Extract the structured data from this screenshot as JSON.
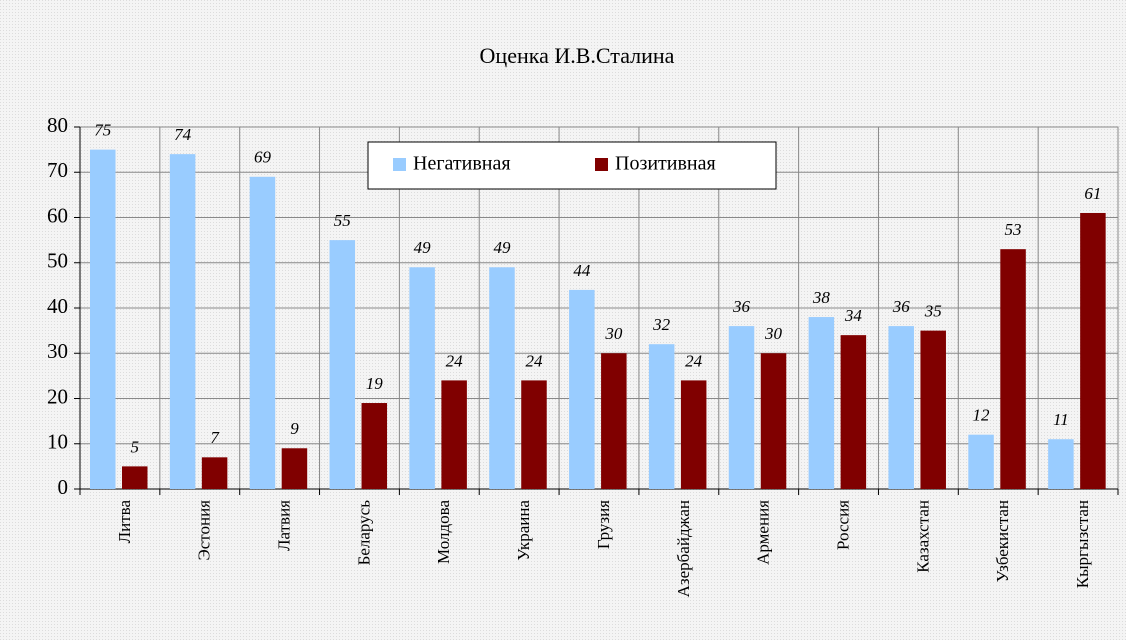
{
  "chart_data": {
    "type": "bar",
    "title": "Оценка И.В.Сталина",
    "categories": [
      "Литва",
      "Эстония",
      "Латвия",
      "Беларусь",
      "Молдова",
      "Украина",
      "Грузия",
      "Азербайджан",
      "Армения",
      "Россия",
      "Казахстан",
      "Узбекистан",
      "Кыргызстан"
    ],
    "series": [
      {
        "name": "Негативная",
        "color": "#99ccff",
        "values": [
          75,
          74,
          69,
          55,
          49,
          49,
          44,
          32,
          36,
          38,
          36,
          12,
          11
        ]
      },
      {
        "name": "Позитивная",
        "color": "#800000",
        "values": [
          5,
          7,
          9,
          19,
          24,
          24,
          30,
          24,
          30,
          34,
          35,
          53,
          61
        ]
      }
    ],
    "ylim": [
      0,
      80
    ],
    "yticks": [
      0,
      10,
      20,
      30,
      40,
      50,
      60,
      70,
      80
    ],
    "grid": true,
    "legend": "top"
  }
}
